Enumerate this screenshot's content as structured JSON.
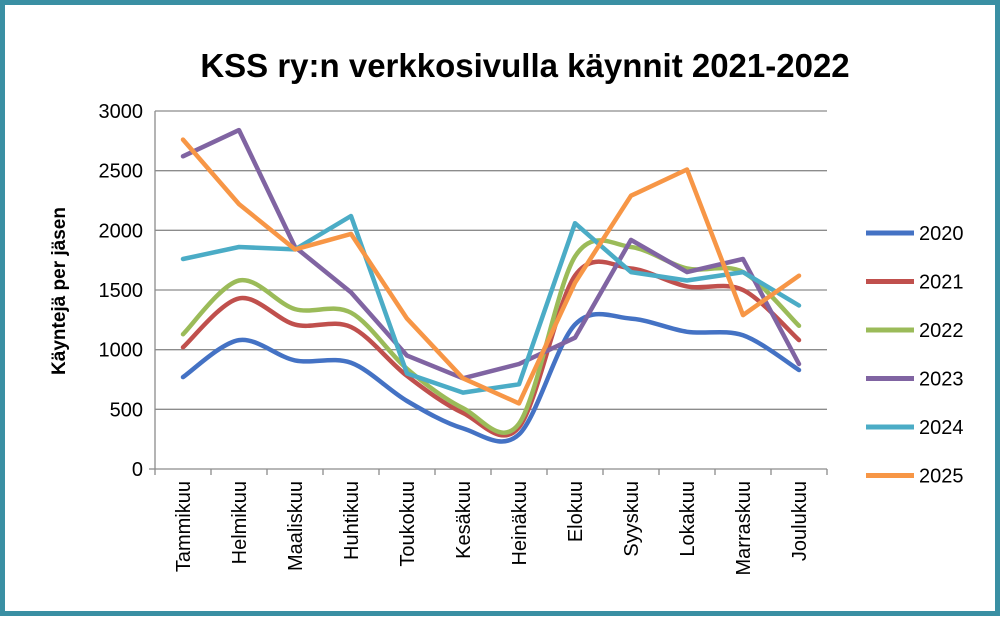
{
  "chart_data": {
    "type": "line",
    "title": "KSS ry:n verkkosivulla käynnit 2021-2022",
    "xlabel": "",
    "ylabel": "Käyntejä per jäsen",
    "ylim": [
      0,
      3000
    ],
    "yticks": [
      0,
      500,
      1000,
      1500,
      2000,
      2500,
      3000
    ],
    "grid": true,
    "legend_position": "right",
    "categories": [
      "Tammikuu",
      "Helmikuu",
      "Maaliskuu",
      "Huhtikuu",
      "Toukokuu",
      "Kesäkuu",
      "Heinäkuu",
      "Elokuu",
      "Syyskuu",
      "Lokakuu",
      "Marraskuu",
      "Joulukuu"
    ],
    "series": [
      {
        "name": "2020",
        "color": "#4472c4",
        "values": [
          770,
          1080,
          910,
          890,
          570,
          340,
          290,
          1210,
          1260,
          1150,
          1120,
          830
        ]
      },
      {
        "name": "2021",
        "color": "#c0504d",
        "values": [
          1020,
          1430,
          1210,
          1190,
          780,
          470,
          350,
          1620,
          1680,
          1530,
          1500,
          1080
        ]
      },
      {
        "name": "2022",
        "color": "#9bbb59",
        "values": [
          1130,
          1580,
          1340,
          1310,
          840,
          510,
          380,
          1780,
          1860,
          1680,
          1650,
          1200
        ]
      },
      {
        "name": "2023",
        "color": "#8064a2",
        "values": [
          2620,
          2840,
          1860,
          1480,
          950,
          760,
          880,
          1100,
          1920,
          1650,
          1760,
          880
        ]
      },
      {
        "name": "2024",
        "color": "#4bacc6",
        "values": [
          1760,
          1860,
          1840,
          2120,
          800,
          640,
          710,
          2060,
          1650,
          1580,
          1650,
          1370
        ]
      },
      {
        "name": "2025",
        "color": "#f79646",
        "values": [
          2760,
          2220,
          1840,
          1970,
          1260,
          760,
          550,
          1560,
          2290,
          2510,
          1290,
          1620
        ]
      }
    ]
  }
}
